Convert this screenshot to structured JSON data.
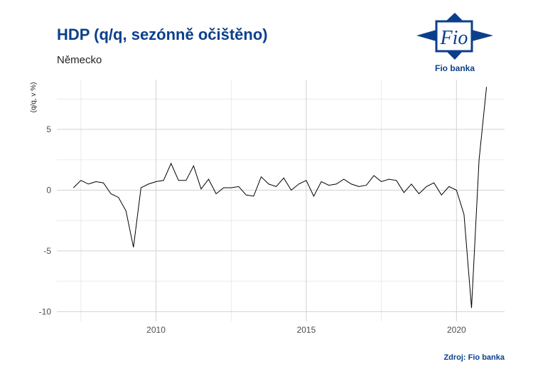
{
  "header": {
    "title": "HDP (q/q, sezónně očištěno)",
    "subtitle": "Německo"
  },
  "logo": {
    "mark_text": "Fio",
    "name": "Fio banka",
    "color": "#0b3f8c"
  },
  "source": "Zdroj: Fio banka",
  "chart_data": {
    "type": "line",
    "title": "HDP (q/q, sezónně očištěno)",
    "subtitle": "Německo",
    "xlabel": "",
    "ylabel": "(q/q, v %)",
    "x_ticks": [
      2010,
      2015,
      2020
    ],
    "y_ticks": [
      5,
      0,
      -5,
      -10
    ],
    "xlim": [
      2006.7,
      2021.6
    ],
    "ylim": [
      -10.8,
      9.1
    ],
    "grid": true,
    "legend": "none",
    "line_color": "#000000",
    "series": [
      {
        "x": [
          2007.25,
          2007.5,
          2007.75,
          2008.0,
          2008.25,
          2008.5,
          2008.75,
          2009.0,
          2009.25,
          2009.5,
          2009.75,
          2010.0,
          2010.25,
          2010.5,
          2010.75,
          2011.0,
          2011.25,
          2011.5,
          2011.75,
          2012.0,
          2012.25,
          2012.5,
          2012.75,
          2013.0,
          2013.25,
          2013.5,
          2013.75,
          2014.0,
          2014.25,
          2014.5,
          2014.75,
          2015.0,
          2015.25,
          2015.5,
          2015.75,
          2016.0,
          2016.25,
          2016.5,
          2016.75,
          2017.0,
          2017.25,
          2017.5,
          2017.75,
          2018.0,
          2018.25,
          2018.5,
          2018.75,
          2019.0,
          2019.25,
          2019.5,
          2019.75,
          2020.0,
          2020.25,
          2020.5,
          2020.75,
          2021.0
        ],
        "values": [
          0.2,
          0.8,
          0.5,
          0.7,
          0.6,
          -0.3,
          -0.6,
          -1.7,
          -4.7,
          0.2,
          0.5,
          0.7,
          0.8,
          2.2,
          0.8,
          0.8,
          2.0,
          0.1,
          0.9,
          -0.3,
          0.2,
          0.2,
          0.3,
          -0.4,
          -0.5,
          1.1,
          0.5,
          0.3,
          1.0,
          0.0,
          0.5,
          0.8,
          -0.5,
          0.7,
          0.4,
          0.5,
          0.9,
          0.5,
          0.3,
          0.4,
          1.2,
          0.7,
          0.9,
          0.8,
          -0.2,
          0.5,
          -0.3,
          0.3,
          0.6,
          -0.4,
          0.3,
          0.0,
          -2.0,
          -9.7,
          2.5,
          8.5
        ]
      }
    ]
  }
}
